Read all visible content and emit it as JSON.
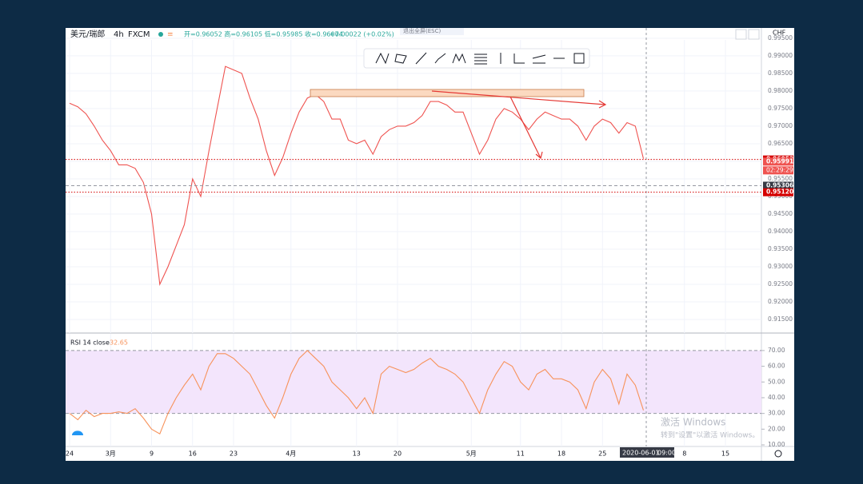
{
  "header": {
    "symbol": "美元/瑞郎",
    "interval": "4h",
    "exchange": "FXCM",
    "ohlc": "开=0.96052 高=0.96105 低=0.95985 收=0.96074",
    "change": "+0.00022 (+0.02%)"
  },
  "currency": "CHF",
  "tooltip": "退出全屏(ESC)",
  "watermark": {
    "title": "激活 Windows",
    "subtitle": "转到\"设置\"以激活 Windows。"
  },
  "cursor": {
    "date": "2020-06-01",
    "time": "09:00"
  },
  "chart_data": [
    {
      "type": "line",
      "color": "#ef5350",
      "x": [
        0,
        1,
        2,
        3,
        4,
        5,
        6,
        7,
        8,
        9,
        10,
        11,
        12,
        13,
        14,
        15,
        16,
        17,
        18,
        19,
        20,
        21,
        22,
        23,
        24,
        25,
        26,
        27,
        28,
        29,
        30,
        31,
        32,
        33,
        34,
        35,
        36,
        37,
        38,
        39,
        40,
        41,
        42,
        43,
        44,
        45,
        46,
        47,
        48,
        49,
        50,
        51,
        52,
        53,
        54,
        55,
        56,
        57,
        58,
        59,
        60,
        61,
        62,
        63,
        64,
        65,
        66,
        67,
        68,
        69,
        70
      ],
      "values": [
        0.9765,
        0.9755,
        0.9735,
        0.97,
        0.966,
        0.963,
        0.959,
        0.959,
        0.958,
        0.954,
        0.945,
        0.925,
        0.93,
        0.936,
        0.942,
        0.955,
        0.95,
        0.963,
        0.975,
        0.987,
        0.986,
        0.985,
        0.978,
        0.972,
        0.963,
        0.956,
        0.961,
        0.968,
        0.974,
        0.978,
        0.979,
        0.977,
        0.972,
        0.972,
        0.966,
        0.965,
        0.966,
        0.962,
        0.967,
        0.969,
        0.97,
        0.97,
        0.971,
        0.973,
        0.977,
        0.977,
        0.976,
        0.974,
        0.974,
        0.968,
        0.962,
        0.966,
        0.972,
        0.975,
        0.974,
        0.972,
        0.969,
        0.972,
        0.974,
        0.973,
        0.972,
        0.972,
        0.97,
        0.966,
        0.97,
        0.972,
        0.971,
        0.968,
        0.971,
        0.97,
        0.96074
      ],
      "xlim": [
        -0.49,
        84.39
      ],
      "xticks": [
        {
          "value": 0,
          "label": "24"
        },
        {
          "value": 5,
          "label": "3月"
        },
        {
          "value": 10,
          "label": "9"
        },
        {
          "value": 15,
          "label": "16"
        },
        {
          "value": 20,
          "label": "23"
        },
        {
          "value": 27,
          "label": "4月"
        },
        {
          "value": 35,
          "label": "13"
        },
        {
          "value": 40,
          "label": "20"
        },
        {
          "value": 49,
          "label": "5月"
        },
        {
          "value": 55,
          "label": "11"
        },
        {
          "value": 60,
          "label": "18"
        },
        {
          "value": 65,
          "label": "25"
        },
        {
          "value": 75,
          "label": "8"
        },
        {
          "value": 80,
          "label": "15"
        }
      ],
      "ylim": [
        0.9116,
        0.9977
      ],
      "yticks": [
        {
          "value": 0.915,
          "label": "0.91500"
        },
        {
          "value": 0.92,
          "label": "0.92000"
        },
        {
          "value": 0.925,
          "label": "0.92500"
        },
        {
          "value": 0.93,
          "label": "0.93000"
        },
        {
          "value": 0.935,
          "label": "0.93500"
        },
        {
          "value": 0.94,
          "label": "0.94000"
        },
        {
          "value": 0.945,
          "label": "0.94500"
        },
        {
          "value": 0.95,
          "label": "0.95000"
        },
        {
          "value": 0.955,
          "label": "0.95500"
        },
        {
          "value": 0.96,
          "label": "0.96000"
        },
        {
          "value": 0.965,
          "label": "0.96500"
        },
        {
          "value": 0.97,
          "label": "0.97000"
        },
        {
          "value": 0.975,
          "label": "0.97500"
        },
        {
          "value": 0.98,
          "label": "0.98000"
        },
        {
          "value": 0.985,
          "label": "0.98500"
        },
        {
          "value": 0.99,
          "label": "0.99000"
        },
        {
          "value": 0.995,
          "label": "0.99500"
        }
      ],
      "price_labels": [
        {
          "value": 0.96052,
          "label": "0.96052",
          "color": "#d50000"
        },
        {
          "value": 0.95991,
          "label": "0.95991",
          "color": "#ef5350"
        },
        {
          "value": 0.95306,
          "label": "0.95306",
          "color": "#363a45"
        },
        {
          "value": 0.9512,
          "label": "0.95120",
          "color": "#d50000"
        }
      ],
      "countdown": "02:29:29",
      "grid": true
    },
    {
      "type": "line",
      "title": "RSI 14 close",
      "last_value": 32.65,
      "color": "#f7925a",
      "band": [
        30,
        70
      ],
      "band_color": "#f3e5fc",
      "ylim": [
        9.5,
        79.6
      ],
      "yticks": [
        {
          "value": 10,
          "label": "10.00"
        },
        {
          "value": 20,
          "label": "20.00"
        },
        {
          "value": 30,
          "label": "30.00"
        },
        {
          "value": 40,
          "label": "40.00"
        },
        {
          "value": 50,
          "label": "50.00"
        },
        {
          "value": 60,
          "label": "60.00"
        },
        {
          "value": 70,
          "label": "70.00"
        }
      ],
      "values": [
        30,
        26,
        32,
        28,
        30,
        30,
        31,
        30,
        33,
        27,
        20,
        17,
        30,
        40,
        48,
        55,
        45,
        60,
        68,
        68,
        65,
        60,
        55,
        45,
        35,
        27,
        40,
        55,
        65,
        70,
        65,
        60,
        50,
        45,
        40,
        33,
        40,
        30,
        55,
        60,
        58,
        56,
        58,
        62,
        65,
        60,
        58,
        55,
        50,
        40,
        30,
        45,
        55,
        63,
        60,
        50,
        45,
        55,
        58,
        52,
        52,
        50,
        45,
        33,
        50,
        58,
        52,
        36,
        55,
        48,
        32
      ]
    }
  ]
}
